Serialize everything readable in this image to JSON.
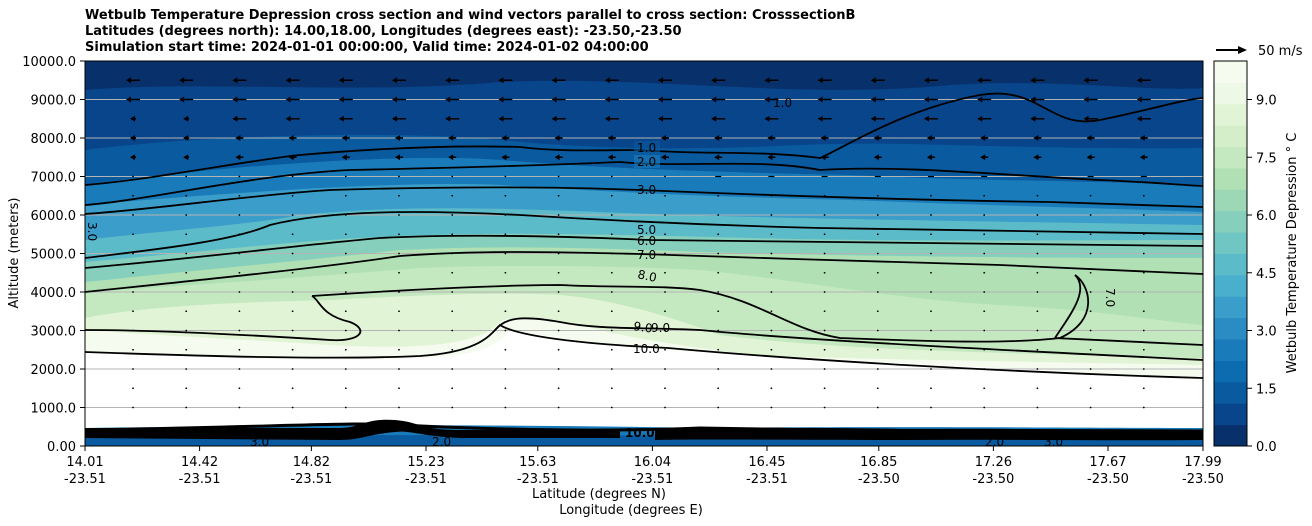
{
  "chart_data": {
    "type": "contour",
    "title_lines": [
      "Wetbulb Temperature Depression cross section and wind vectors parallel to cross section: CrosssectionB",
      "Latitudes (degrees north): 14.00,18.00, Longitudes (degrees east): -23.50,-23.50",
      "Simulation start time: 2024-01-01 00:00:00, Valid time: 2024-01-02 04:00:00"
    ],
    "ylabel": "Altitude (meters)",
    "xlabel_lat": "Latitude (degrees N)",
    "xlabel_lon": "Longitude (degrees E)",
    "ylim": [
      0,
      10000
    ],
    "y_ticks": [
      "0.00",
      "1000.0",
      "2000.0",
      "3000.0",
      "4000.0",
      "5000.0",
      "6000.0",
      "7000.0",
      "8000.0",
      "9000.0",
      "10000.0"
    ],
    "x_ticks": [
      {
        "lat": "14.01",
        "lon": "-23.51"
      },
      {
        "lat": "14.42",
        "lon": "-23.51"
      },
      {
        "lat": "14.82",
        "lon": "-23.51"
      },
      {
        "lat": "15.23",
        "lon": "-23.51"
      },
      {
        "lat": "15.63",
        "lon": "-23.51"
      },
      {
        "lat": "16.04",
        "lon": "-23.51"
      },
      {
        "lat": "16.45",
        "lon": "-23.51"
      },
      {
        "lat": "16.85",
        "lon": "-23.50"
      },
      {
        "lat": "17.26",
        "lon": "-23.50"
      },
      {
        "lat": "17.67",
        "lon": "-23.50"
      },
      {
        "lat": "17.99",
        "lon": "-23.50"
      }
    ],
    "contour_levels": [
      "1.0",
      "2.0",
      "3.0",
      "5.0",
      "6.0",
      "7.0",
      "8.0",
      "9.0",
      "10.0"
    ],
    "extra_contour_labels": [
      "1.0",
      "3.0",
      "7.0",
      "9.0",
      "2.0",
      "3.0",
      "2.0",
      "3.0",
      "10.0"
    ],
    "colorbar": {
      "label": "Wetbulb Temperature Depression ° C",
      "range": [
        0,
        10
      ],
      "ticks": [
        "0.0",
        "1.5",
        "3.0",
        "4.5",
        "6.0",
        "7.5",
        "9.0"
      ],
      "colors": [
        "#08306b",
        "#08458a",
        "#0a5a9f",
        "#0d6bb0",
        "#1a7bba",
        "#2b8cc4",
        "#3b9dc9",
        "#4aaecd",
        "#5cbbc9",
        "#70c6c2",
        "#86cfbc",
        "#9cd8b6",
        "#b0e0b4",
        "#c4e8bf",
        "#d4eec9",
        "#e2f4d6",
        "#eef8e6",
        "#f6fbef"
      ]
    },
    "wind_reference": "50 m/s"
  }
}
